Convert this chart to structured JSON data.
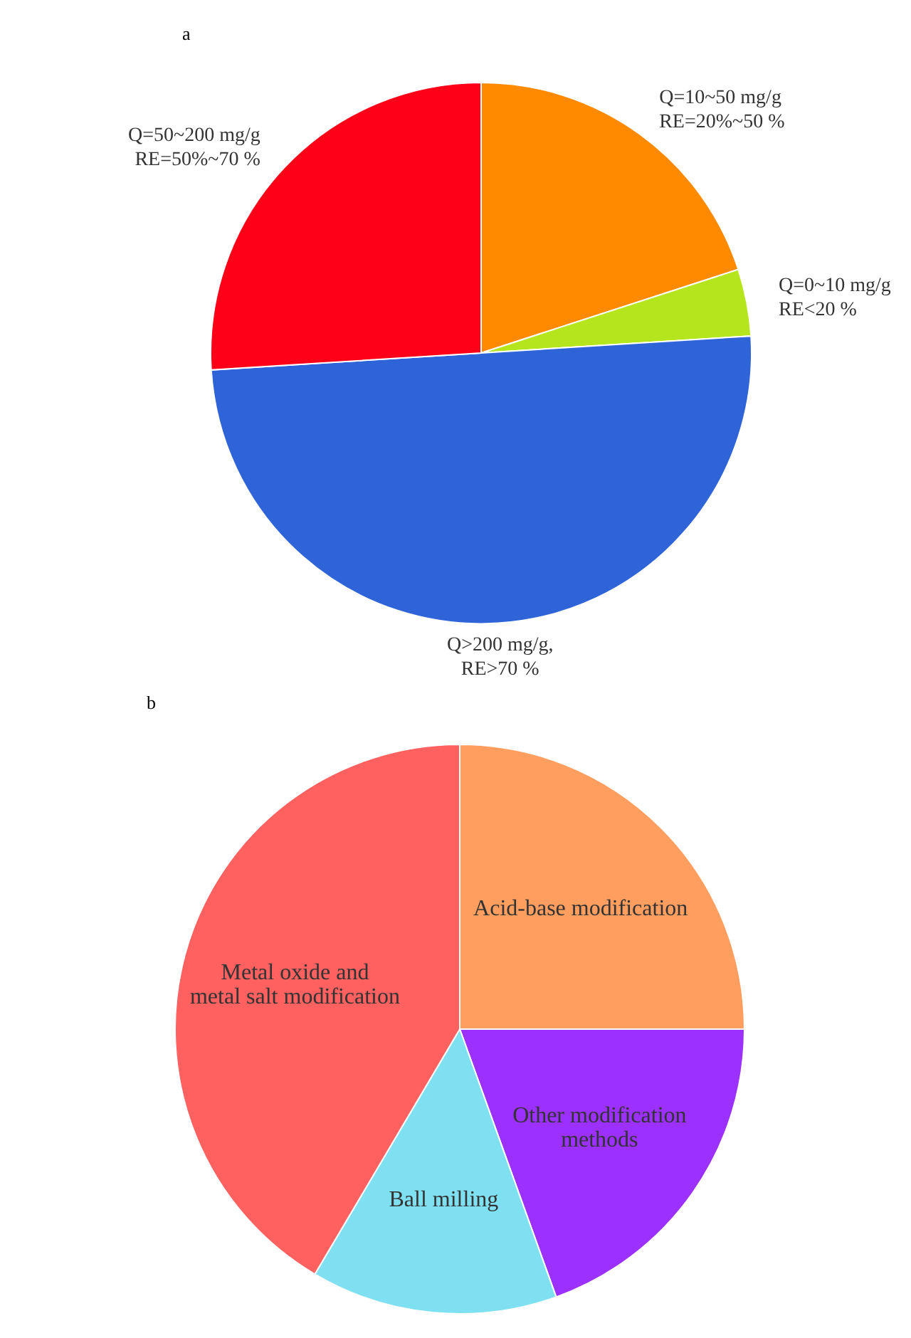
{
  "chart_data": [
    {
      "type": "pie",
      "title": "a",
      "categories": [
        "Q=10~50 mg/g\nRE=20%~50 %",
        "Q=0~10 mg/g\nRE<20 %",
        "Q>200 mg/g,\nRE>70 %",
        "Q=50~200 mg/g\nRE=50%~70 %"
      ],
      "values": [
        20,
        4,
        50,
        26
      ],
      "colors": [
        "#ff8a00",
        "#b5e61d",
        "#2e64d8",
        "#ff0019"
      ]
    },
    {
      "type": "pie",
      "title": "b",
      "categories": [
        "Acid-base modification",
        "Other modification\nmethods",
        "Ball milling",
        "Metal oxide and\nmetal salt modification"
      ],
      "values": [
        25,
        19.5,
        14,
        41.5
      ],
      "colors": [
        "#ff9e5e",
        "#9b30ff",
        "#7ee0f0",
        "#ff6060"
      ]
    }
  ]
}
